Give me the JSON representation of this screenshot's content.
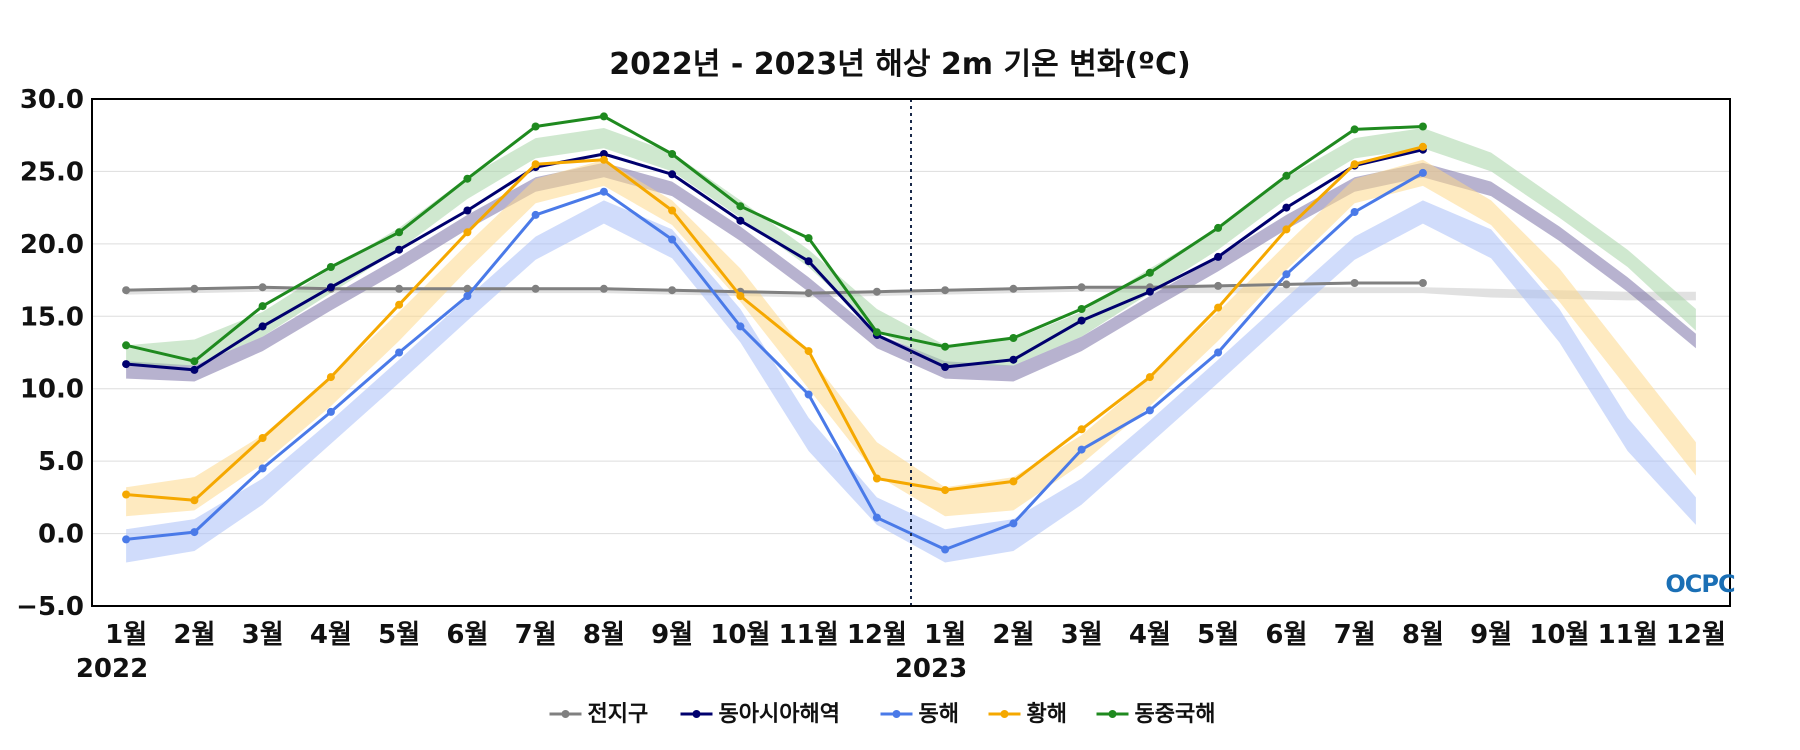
{
  "chart_data": {
    "type": "line",
    "title": "2022년 - 2023년 해상 2m 기온 변화(ºC)",
    "xlabel": "",
    "ylabel": "",
    "ylim": [
      -5,
      30
    ],
    "yticks": [
      "30.0",
      "25.0",
      "20.0",
      "15.0",
      "10.0",
      "5.0",
      "0.0",
      "−5.0"
    ],
    "ytick_values": [
      30,
      25,
      20,
      15,
      10,
      5,
      0,
      -5
    ],
    "categories": [
      "1월",
      "2월",
      "3월",
      "4월",
      "5월",
      "6월",
      "7월",
      "8월",
      "9월",
      "10월",
      "11월",
      "12월",
      "1월",
      "2월",
      "3월",
      "4월",
      "5월",
      "6월",
      "7월",
      "8월",
      "9월",
      "10월",
      "11월",
      "12월"
    ],
    "year_labels": [
      {
        "label": "2022",
        "index": 0
      },
      {
        "label": "2023",
        "index": 12
      }
    ],
    "divider_between": [
      11,
      12
    ],
    "grid": "horizontal",
    "legend_position": "bottom-center",
    "series": [
      {
        "name": "전지구",
        "color": "#808080",
        "band_color": "#c8c8c8",
        "values": [
          16.8,
          16.9,
          17.0,
          16.9,
          16.9,
          16.9,
          16.9,
          16.9,
          16.8,
          16.7,
          16.6,
          16.7,
          16.8,
          16.9,
          17.0,
          17.0,
          17.1,
          17.2,
          17.3,
          17.3,
          null,
          null,
          null,
          null
        ],
        "clim_upper": [
          16.9,
          17.0,
          17.0,
          17.0,
          17.0,
          17.0,
          17.0,
          17.0,
          16.9,
          16.8,
          16.7,
          16.7,
          16.9,
          17.0,
          17.0,
          17.0,
          17.0,
          17.0,
          17.0,
          17.0,
          16.9,
          16.8,
          16.7,
          16.7
        ],
        "clim_lower": [
          16.5,
          16.6,
          16.7,
          16.6,
          16.6,
          16.6,
          16.6,
          16.6,
          16.5,
          16.4,
          16.3,
          16.4,
          16.5,
          16.6,
          16.7,
          16.6,
          16.6,
          16.6,
          16.6,
          16.6,
          16.3,
          16.2,
          16.1,
          16.1
        ]
      },
      {
        "name": "동아시아해역",
        "color": "#00006e",
        "band_color": "#7c73a8",
        "values": [
          11.7,
          11.3,
          14.3,
          17.0,
          19.6,
          22.3,
          25.3,
          26.2,
          24.8,
          21.6,
          18.8,
          13.7,
          11.5,
          12.0,
          14.7,
          16.7,
          19.1,
          22.5,
          25.4,
          26.5,
          null,
          null,
          null,
          null
        ],
        "clim_upper": [
          11.9,
          11.6,
          13.6,
          16.4,
          19.1,
          22.0,
          24.6,
          25.6,
          24.3,
          21.2,
          17.7,
          13.8,
          11.9,
          11.6,
          13.6,
          16.4,
          19.1,
          22.0,
          24.6,
          25.6,
          24.3,
          21.2,
          17.7,
          13.8
        ],
        "clim_lower": [
          10.7,
          10.5,
          12.6,
          15.4,
          18.1,
          21.0,
          23.6,
          24.6,
          23.3,
          20.2,
          16.7,
          12.8,
          10.7,
          10.5,
          12.6,
          15.4,
          18.1,
          21.0,
          23.6,
          24.6,
          23.3,
          20.2,
          16.7,
          12.8
        ]
      },
      {
        "name": "동해",
        "color": "#4a7ae8",
        "band_color": "#a9bff7",
        "values": [
          -0.4,
          0.1,
          4.5,
          8.4,
          12.5,
          16.4,
          22.0,
          23.6,
          20.3,
          14.3,
          9.6,
          1.1,
          -1.1,
          0.7,
          5.8,
          8.5,
          12.5,
          17.9,
          22.2,
          24.9,
          null,
          null,
          null,
          null
        ],
        "clim_upper": [
          0.3,
          1.0,
          3.8,
          7.8,
          12.0,
          16.3,
          20.5,
          23.0,
          21.0,
          15.5,
          8.0,
          2.5,
          0.3,
          1.0,
          3.8,
          7.8,
          12.0,
          16.3,
          20.5,
          23.0,
          21.0,
          15.5,
          8.0,
          2.5
        ],
        "clim_lower": [
          -2.0,
          -1.2,
          2.0,
          6.2,
          10.4,
          14.7,
          18.9,
          21.4,
          19.0,
          13.2,
          5.7,
          0.6,
          -2.0,
          -1.2,
          2.0,
          6.2,
          10.4,
          14.7,
          18.9,
          21.4,
          19.0,
          13.2,
          5.7,
          0.6
        ]
      },
      {
        "name": "황해",
        "color": "#f5a800",
        "band_color": "#fdd98c",
        "values": [
          2.7,
          2.3,
          6.6,
          10.8,
          15.8,
          20.8,
          25.5,
          25.8,
          22.3,
          16.4,
          12.6,
          3.8,
          3.0,
          3.6,
          7.2,
          10.8,
          15.6,
          21.0,
          25.5,
          26.7,
          null,
          null,
          null,
          null
        ],
        "clim_upper": [
          3.2,
          3.9,
          6.8,
          10.8,
          15.3,
          20.0,
          24.5,
          25.8,
          23.0,
          18.3,
          12.3,
          6.3,
          3.2,
          3.9,
          6.8,
          10.8,
          15.3,
          20.0,
          24.5,
          25.8,
          23.0,
          18.3,
          12.3,
          6.3
        ],
        "clim_lower": [
          1.2,
          1.6,
          4.8,
          8.8,
          13.3,
          18.2,
          22.8,
          24.0,
          21.3,
          16.0,
          10.0,
          4.0,
          1.2,
          1.6,
          4.8,
          8.8,
          13.3,
          18.2,
          22.8,
          24.0,
          21.3,
          16.0,
          10.0,
          4.0
        ]
      },
      {
        "name": "동중국해",
        "color": "#1f8a1f",
        "band_color": "#a8d6a8",
        "values": [
          13.0,
          11.9,
          15.7,
          18.4,
          20.8,
          24.5,
          28.1,
          28.8,
          26.2,
          22.6,
          20.4,
          13.9,
          12.9,
          13.5,
          15.5,
          18.0,
          21.1,
          24.7,
          27.9,
          28.1,
          null,
          null,
          null,
          null
        ],
        "clim_upper": [
          13.0,
          13.4,
          15.3,
          18.3,
          21.1,
          24.6,
          27.3,
          28.0,
          26.3,
          23.0,
          19.6,
          15.5,
          13.0,
          13.4,
          15.3,
          18.3,
          21.1,
          24.6,
          27.3,
          28.0,
          26.3,
          23.0,
          19.6,
          15.5
        ],
        "clim_lower": [
          11.6,
          11.6,
          13.6,
          16.6,
          19.6,
          23.1,
          25.9,
          26.6,
          25.0,
          21.8,
          18.4,
          14.0,
          11.6,
          11.6,
          13.6,
          16.6,
          19.6,
          23.1,
          25.9,
          26.6,
          25.0,
          21.8,
          18.4,
          14.0
        ]
      }
    ]
  },
  "logo": {
    "text": "OCPC",
    "color": "#1a6fb5"
  }
}
